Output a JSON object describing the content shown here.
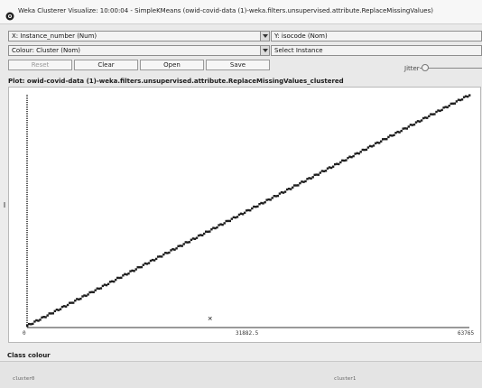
{
  "window": {
    "title": "Weka Clusterer Visualize: 10:00:04 - SimpleKMeans (owid-covid-data (1)-weka.filters.unsupervised.attribute.ReplaceMissingValues)",
    "icon": "weka-bird-icon"
  },
  "controls": {
    "x_axis_select": "X: Instance_number (Num)",
    "y_axis_select": "Y: isocode (Nom)",
    "colour_select": "Colour: Cluster (Nom)",
    "select_instance": "Select Instance",
    "reset_label": "Reset",
    "clear_label": "Clear",
    "open_label": "Open",
    "save_label": "Save",
    "jitter_label": "Jitter",
    "jitter_value": 0
  },
  "plot": {
    "heading": "Plot: owid-covid-data (1)-weka.filters.unsupervised.attribute.ReplaceMissingValues_clustered"
  },
  "chart_data": {
    "type": "scatter",
    "xlabel": "",
    "ylabel": "",
    "x_ticks": [
      "0",
      "31882.5",
      "63765"
    ],
    "xlim": [
      0,
      63765
    ],
    "ylim": [
      0,
      1
    ],
    "series": [
      {
        "name": "cluster0",
        "points": [
          [
            0,
            0.0
          ],
          [
            63765,
            1.0
          ]
        ]
      },
      {
        "name": "cluster1",
        "points": [
          [
            26000,
            0.03
          ]
        ]
      }
    ],
    "colors": {
      "cluster0": "#1e1e1e",
      "cluster1": "#1e1e1e"
    }
  },
  "legend": {
    "heading": "Class colour",
    "items": [
      "cluster0",
      "cluster1"
    ]
  }
}
